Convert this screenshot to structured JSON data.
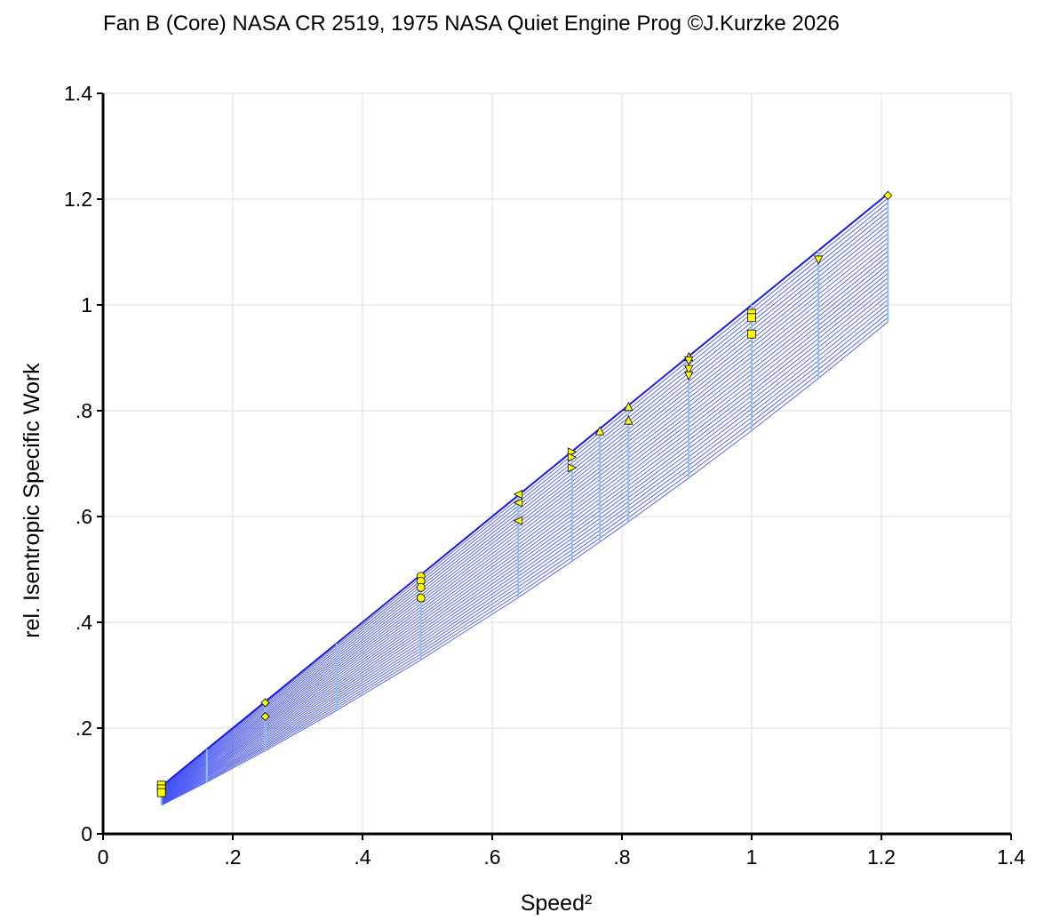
{
  "chart_data": {
    "type": "line",
    "title": "Fan B (Core) NASA CR 2519, 1975 NASA Quiet Engine Prog ©J.Kurzke 2026",
    "xlabel": "Speed²",
    "ylabel": "rel. Isentropic Specific Work",
    "xlim": [
      0,
      1.4
    ],
    "ylim": [
      0,
      1.4
    ],
    "x_ticks": [
      {
        "value": 0,
        "label": "0"
      },
      {
        "value": 0.2,
        "label": ".2"
      },
      {
        "value": 0.4,
        "label": ".4"
      },
      {
        "value": 0.6,
        "label": ".6"
      },
      {
        "value": 0.8,
        "label": ".8"
      },
      {
        "value": 1.0,
        "label": "1"
      },
      {
        "value": 1.2,
        "label": "1.2"
      },
      {
        "value": 1.4,
        "label": "1.4"
      }
    ],
    "y_ticks": [
      {
        "value": 0,
        "label": "0"
      },
      {
        "value": 0.2,
        "label": ".2"
      },
      {
        "value": 0.4,
        "label": ".4"
      },
      {
        "value": 0.6,
        "label": ".6"
      },
      {
        "value": 0.8,
        "label": ".8"
      },
      {
        "value": 1.0,
        "label": "1"
      },
      {
        "value": 1.2,
        "label": "1.2"
      },
      {
        "value": 1.4,
        "label": "1.4"
      }
    ],
    "grid": true,
    "map": {
      "speed_squared": [
        0.09,
        0.16,
        0.25,
        0.36,
        0.49,
        0.64,
        0.723,
        0.766,
        0.81,
        0.903,
        1.0,
        1.103,
        1.21
      ],
      "top_ratio": 1.0,
      "bottom_ratio": 0.6,
      "bottom_ratio_at_max": 0.8,
      "line_count": 30,
      "line_color": "#2b3cf0",
      "speed_line_color": "#8fbef0"
    },
    "measured_points": [
      {
        "x": 0.09,
        "y": 0.092,
        "marker": "square"
      },
      {
        "x": 0.09,
        "y": 0.085,
        "marker": "square"
      },
      {
        "x": 0.09,
        "y": 0.078,
        "marker": "square"
      },
      {
        "x": 0.25,
        "y": 0.248,
        "marker": "diamond"
      },
      {
        "x": 0.25,
        "y": 0.222,
        "marker": "diamond"
      },
      {
        "x": 0.49,
        "y": 0.487,
        "marker": "circle"
      },
      {
        "x": 0.49,
        "y": 0.478,
        "marker": "circle"
      },
      {
        "x": 0.49,
        "y": 0.466,
        "marker": "circle"
      },
      {
        "x": 0.49,
        "y": 0.446,
        "marker": "circle"
      },
      {
        "x": 0.64,
        "y": 0.642,
        "marker": "triangle-left"
      },
      {
        "x": 0.64,
        "y": 0.626,
        "marker": "triangle-left"
      },
      {
        "x": 0.64,
        "y": 0.592,
        "marker": "triangle-left"
      },
      {
        "x": 0.723,
        "y": 0.722,
        "marker": "triangle-right"
      },
      {
        "x": 0.723,
        "y": 0.712,
        "marker": "triangle-right"
      },
      {
        "x": 0.723,
        "y": 0.692,
        "marker": "triangle-right"
      },
      {
        "x": 0.766,
        "y": 0.762,
        "marker": "triangle-up"
      },
      {
        "x": 0.81,
        "y": 0.808,
        "marker": "triangle-up"
      },
      {
        "x": 0.81,
        "y": 0.782,
        "marker": "triangle-up"
      },
      {
        "x": 0.903,
        "y": 0.902,
        "marker": "triangle-up"
      },
      {
        "x": 0.903,
        "y": 0.894,
        "marker": "triangle-down"
      },
      {
        "x": 0.903,
        "y": 0.878,
        "marker": "triangle-down"
      },
      {
        "x": 0.903,
        "y": 0.866,
        "marker": "triangle-down"
      },
      {
        "x": 1.0,
        "y": 0.984,
        "marker": "square"
      },
      {
        "x": 1.0,
        "y": 0.976,
        "marker": "square"
      },
      {
        "x": 1.0,
        "y": 0.945,
        "marker": "square"
      },
      {
        "x": 1.103,
        "y": 1.085,
        "marker": "triangle-down"
      },
      {
        "x": 1.21,
        "y": 1.207,
        "marker": "diamond"
      }
    ],
    "marker_fill": "#ffff00",
    "marker_stroke": "#000000"
  }
}
